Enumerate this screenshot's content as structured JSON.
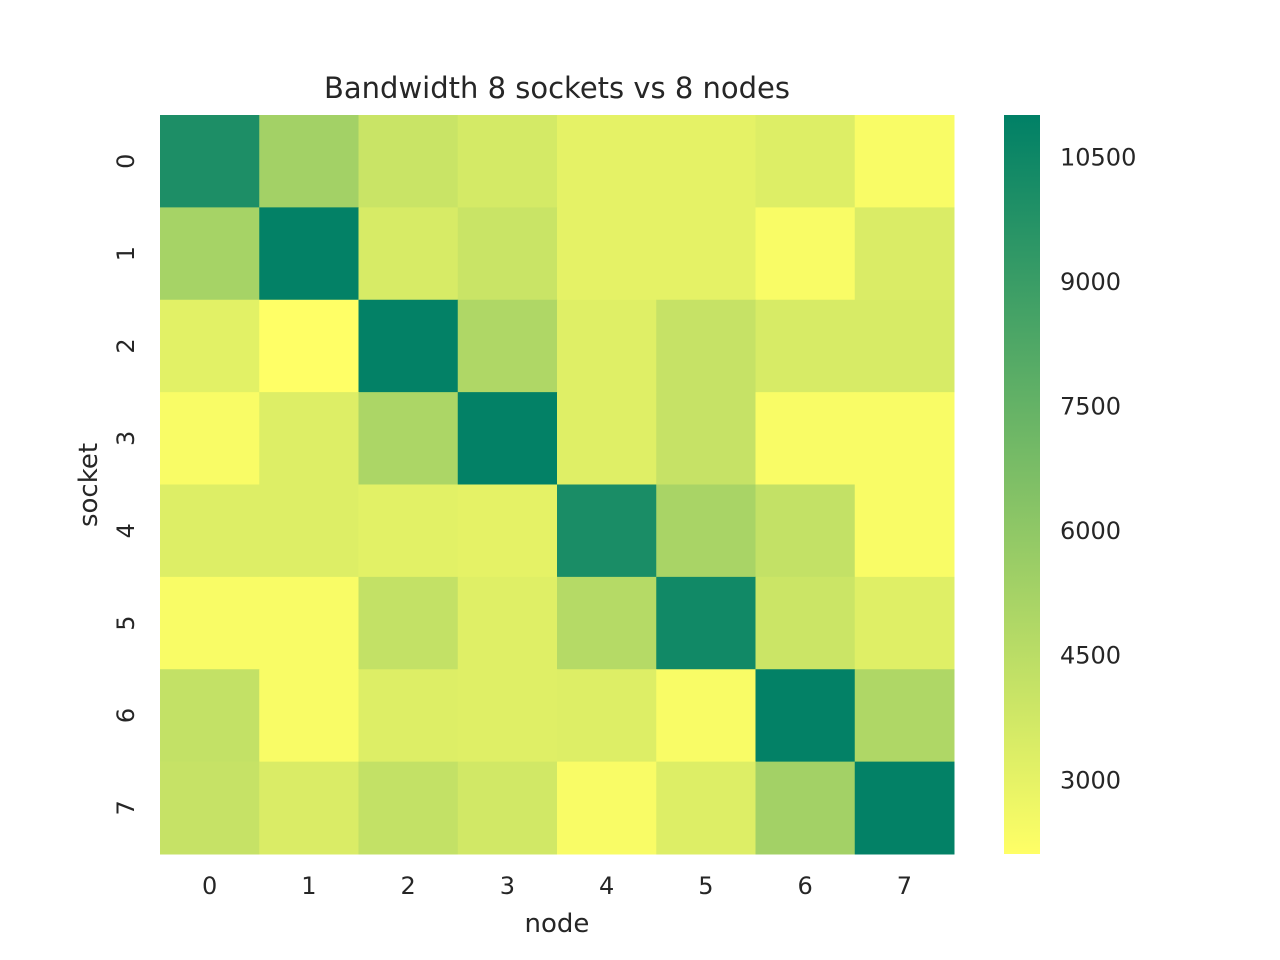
{
  "chart_data": {
    "type": "heatmap",
    "title": "Bandwidth 8 sockets vs 8 nodes",
    "xlabel": "node",
    "ylabel": "socket",
    "x_categories": [
      "0",
      "1",
      "2",
      "3",
      "4",
      "5",
      "6",
      "7"
    ],
    "y_categories": [
      "0",
      "1",
      "2",
      "3",
      "4",
      "5",
      "6",
      "7"
    ],
    "values": [
      [
        10000,
        5300,
        4000,
        3600,
        3000,
        3000,
        3300,
        2300
      ],
      [
        5200,
        10900,
        3500,
        4000,
        3000,
        3000,
        2300,
        3400
      ],
      [
        3100,
        2100,
        10900,
        4900,
        3200,
        4100,
        3500,
        3500
      ],
      [
        2300,
        3300,
        5000,
        10900,
        3200,
        4100,
        2300,
        2300
      ],
      [
        3300,
        3300,
        3100,
        3000,
        10100,
        5100,
        4200,
        2300
      ],
      [
        2300,
        2300,
        4200,
        3200,
        4700,
        10400,
        3900,
        3200
      ],
      [
        4200,
        2300,
        3300,
        3200,
        3300,
        2300,
        10900,
        4900
      ],
      [
        4100,
        3400,
        4200,
        3700,
        2300,
        3300,
        5300,
        10900
      ]
    ],
    "colorbar": {
      "min": 2100,
      "max": 11000,
      "ticks": [
        "3000",
        "4500",
        "6000",
        "7500",
        "9000",
        "10500"
      ],
      "colormap": "summer_r",
      "color_low": "#ffff66",
      "color_high": "#008066"
    },
    "grid": false
  }
}
